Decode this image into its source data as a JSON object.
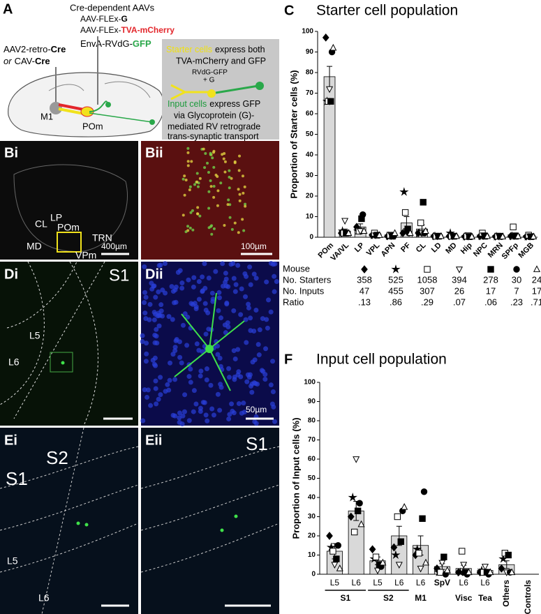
{
  "panel_a": {
    "letter": "A",
    "aav_heading": "Cre-dependent AAVs",
    "aav1": [
      "AAV-FLEx-",
      "G"
    ],
    "aav2": [
      "AAV-FLEx-",
      "TVA-mCherry"
    ],
    "retro1": [
      "AAV2-retro-",
      "Cre"
    ],
    "retro2": [
      "or",
      "CAV-",
      "Cre"
    ],
    "rabies": [
      "EnvA-RVdG-",
      "GFP"
    ],
    "m1": "M1",
    "pom": "POm",
    "starter_label": "Starter cells",
    "starter_text": [
      "express both",
      "TVA-mCherry and GFP"
    ],
    "rv_label": [
      "RVdG-GFP",
      "+ G"
    ],
    "input_label": "Input cells",
    "input_text": [
      "express GFP",
      "via Glycoprotein (G)-",
      "mediated RV retrograde",
      "trans-synaptic transport"
    ]
  },
  "images": {
    "bi": {
      "letter": "Bi",
      "labels": [
        "CL",
        "LP",
        "POm",
        "MD",
        "TRN",
        "VPm"
      ],
      "scale": "400µm"
    },
    "bii": {
      "letter": "Bii",
      "scale": "100µm"
    },
    "di": {
      "letter": "Di",
      "labels": [
        "S1",
        "L5",
        "L6"
      ]
    },
    "dii": {
      "letter": "Dii",
      "scale": "50µm"
    },
    "ei": {
      "letter": "Ei",
      "labels": [
        "S1",
        "S2",
        "L5",
        "L6"
      ]
    },
    "eii": {
      "letter": "Eii",
      "labels": [
        "S1"
      ]
    }
  },
  "chart_data": [
    {
      "type": "bar",
      "letter": "C",
      "title": "Starter cell population",
      "ylabel": "Proportion of Starter cells (%)",
      "categories": [
        "POm",
        "VA/VL",
        "LP",
        "VPL",
        "APN",
        "PF",
        "CL",
        "LD",
        "MD",
        "Hip",
        "NPC",
        "MRN",
        "SPFp",
        "MGB"
      ],
      "values": [
        78,
        3,
        5,
        1,
        1,
        7,
        4,
        0.5,
        0.7,
        0.4,
        0.8,
        0.4,
        1.3,
        0.4
      ],
      "errors": [
        5,
        1,
        1.5,
        0.3,
        0.3,
        3,
        2,
        0.1,
        0.2,
        0.1,
        0.2,
        0.1,
        0.7,
        0.1
      ],
      "color": "#d9d9d9",
      "ylim": [
        0,
        100
      ],
      "yticks": [
        0,
        10,
        20,
        30,
        40,
        50,
        60,
        70,
        80,
        90,
        100
      ],
      "series": [
        {
          "marker": "diamond",
          "color": "#000",
          "values": [
            97,
            2,
            5,
            1,
            0.5,
            2,
            2,
            0.5,
            0.5,
            0.3,
            0.5,
            0.3,
            0.5,
            0.3
          ]
        },
        {
          "marker": "star",
          "color": "#000",
          "values": [
            66,
            3,
            3,
            1,
            0.5,
            22,
            2,
            0.5,
            2,
            0.3,
            0.5,
            0.3,
            0.5,
            0.3
          ]
        },
        {
          "marker": "square-open",
          "color": "#000",
          "values": [
            66,
            2,
            3,
            2,
            1,
            12,
            7,
            0.5,
            0.5,
            0.5,
            2,
            0.5,
            5,
            1
          ]
        },
        {
          "marker": "triangle-down-open",
          "color": "#000",
          "values": [
            72,
            8,
            3,
            1,
            1,
            3,
            2,
            0.5,
            0.5,
            1,
            1,
            0.5,
            1,
            0.5
          ]
        },
        {
          "marker": "square",
          "color": "#000",
          "values": [
            66,
            2,
            9,
            1,
            0.5,
            4,
            17,
            0.5,
            0.5,
            0.3,
            0.5,
            0.5,
            0.5,
            0.3
          ]
        },
        {
          "marker": "circle",
          "color": "#000",
          "values": [
            90,
            2,
            11,
            1,
            0.5,
            2,
            2,
            0.5,
            0.5,
            0.3,
            0.5,
            0.3,
            0.5,
            0.3
          ]
        },
        {
          "marker": "triangle-up-open",
          "color": "#000",
          "values": [
            92,
            2,
            3,
            1,
            2,
            2,
            3,
            0.5,
            0.5,
            0.3,
            0.5,
            0.3,
            0.5,
            0.3
          ]
        }
      ]
    },
    {
      "type": "bar",
      "letter": "F",
      "title": "Input cell population",
      "ylabel": "Proportion of Input cells (%)",
      "categories": [
        "L5",
        "L6",
        "L5",
        "L6",
        "L6",
        "SpV",
        "L6",
        "L6",
        "Others",
        "Controls"
      ],
      "category_groups": [
        "S1",
        "S1",
        "S2",
        "S2",
        "M1",
        null,
        "Visc",
        "Tea",
        null,
        null
      ],
      "values": [
        12,
        33,
        7,
        20,
        15,
        4,
        3,
        2,
        5,
        0
      ],
      "errors": [
        4,
        5,
        2,
        5,
        5,
        1.5,
        1.7,
        0.6,
        2,
        0
      ],
      "color": "#d9d9d9",
      "ylim": [
        0,
        100
      ],
      "yticks": [
        0,
        10,
        20,
        30,
        40,
        50,
        60,
        70,
        80,
        90,
        100
      ],
      "series": [
        {
          "marker": "diamond",
          "color": "#000",
          "values": [
            20,
            30,
            13,
            14,
            10,
            3,
            1,
            1,
            3,
            null
          ]
        },
        {
          "marker": "star",
          "color": "#000",
          "values": [
            14,
            40,
            8,
            10,
            13,
            1,
            1,
            2,
            8,
            null
          ]
        },
        {
          "marker": "square-open",
          "color": "#000",
          "values": [
            12,
            22,
            9,
            30,
            11,
            1,
            12,
            1,
            11,
            null
          ]
        },
        {
          "marker": "triangle-down-open",
          "color": "#000",
          "values": [
            5,
            60,
            2,
            5,
            3,
            6,
            5,
            4,
            1,
            null
          ]
        },
        {
          "marker": "square",
          "color": "#000",
          "values": [
            8,
            33,
            5,
            17,
            29,
            9,
            1,
            1,
            10,
            null
          ]
        },
        {
          "marker": "circle",
          "color": "#000",
          "values": [
            15,
            37,
            4,
            33,
            43,
            0,
            0,
            0,
            1,
            null
          ]
        },
        {
          "marker": "triangle-up-open",
          "color": "#000",
          "values": [
            3,
            26,
            6,
            35,
            6,
            2,
            1,
            1,
            1,
            null
          ]
        }
      ]
    }
  ],
  "table": {
    "row_labels": [
      "Mouse",
      "No. Starters",
      "No. Inputs",
      "Ratio"
    ],
    "starters": [
      358,
      525,
      1058,
      394,
      278,
      30,
      24
    ],
    "inputs": [
      47,
      455,
      307,
      26,
      17,
      7,
      17
    ],
    "ratio": [
      ".13",
      ".86",
      ".29",
      ".07",
      ".06",
      ".23",
      ".71"
    ]
  }
}
